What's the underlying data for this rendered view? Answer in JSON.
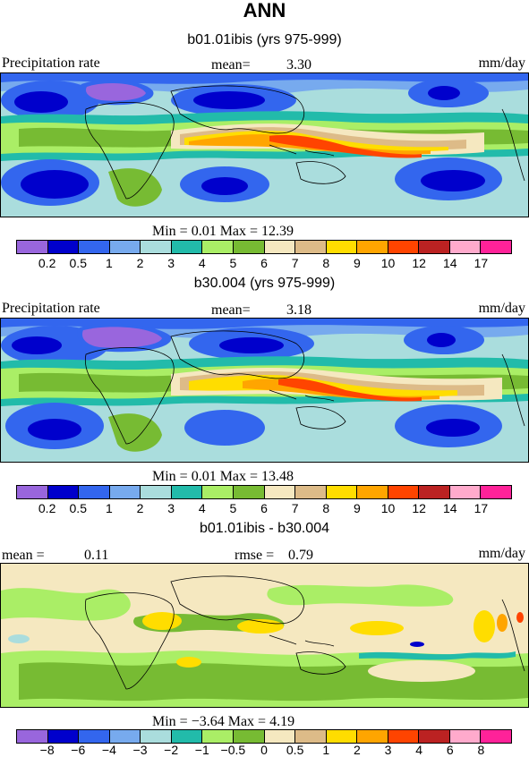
{
  "figure": {
    "title": "ANN"
  },
  "panels": [
    {
      "subtitle": "b01.01ibis (yrs 975-999)",
      "left_label": "Precipitation rate",
      "mean_label": "mean=",
      "mean_value": "3.30",
      "units": "mm/day",
      "minmax_text": "Min =   0.01  Max =   12.39",
      "colorbar": {
        "colors": [
          "#9966dd",
          "#0000cc",
          "#3366ee",
          "#77aaee",
          "#aadddd",
          "#22bbaa",
          "#aaee66",
          "#77bb33",
          "#f5e8c0",
          "#ddbb88",
          "#ffdd00",
          "#ffa500",
          "#ff4400",
          "#bb2222",
          "#ffaacc",
          "#ff2299"
        ],
        "ticks": [
          "0.2",
          "0.5",
          "1",
          "2",
          "3",
          "4",
          "5",
          "6",
          "7",
          "8",
          "9",
          "10",
          "12",
          "14",
          "17"
        ]
      }
    },
    {
      "subtitle": "b30.004 (yrs 975-999)",
      "left_label": "Precipitation rate",
      "mean_label": "mean=",
      "mean_value": "3.18",
      "units": "mm/day",
      "minmax_text": "Min =   0.01  Max =   13.48",
      "colorbar": {
        "colors": [
          "#9966dd",
          "#0000cc",
          "#3366ee",
          "#77aaee",
          "#aadddd",
          "#22bbaa",
          "#aaee66",
          "#77bb33",
          "#f5e8c0",
          "#ddbb88",
          "#ffdd00",
          "#ffa500",
          "#ff4400",
          "#bb2222",
          "#ffaacc",
          "#ff2299"
        ],
        "ticks": [
          "0.2",
          "0.5",
          "1",
          "2",
          "3",
          "4",
          "5",
          "6",
          "7",
          "8",
          "9",
          "10",
          "12",
          "14",
          "17"
        ]
      }
    },
    {
      "subtitle": "b01.01ibis - b30.004",
      "left_label": "mean =",
      "mean_value": "0.11",
      "rmse_label": "rmse =",
      "rmse_value": "0.79",
      "units": "mm/day",
      "minmax_text": "Min =  −3.64  Max =    4.19",
      "colorbar": {
        "colors": [
          "#9966dd",
          "#0000cc",
          "#3366ee",
          "#77aaee",
          "#aadddd",
          "#22bbaa",
          "#aaee66",
          "#77bb33",
          "#f5e8c0",
          "#ddbb88",
          "#ffdd00",
          "#ffa500",
          "#ff4400",
          "#bb2222",
          "#ffaacc",
          "#ff2299"
        ],
        "ticks": [
          "−8",
          "−6",
          "−4",
          "−3",
          "−2",
          "−1",
          "−0.5",
          "0",
          "0.5",
          "1",
          "2",
          "3",
          "4",
          "6",
          "8"
        ]
      }
    }
  ]
}
